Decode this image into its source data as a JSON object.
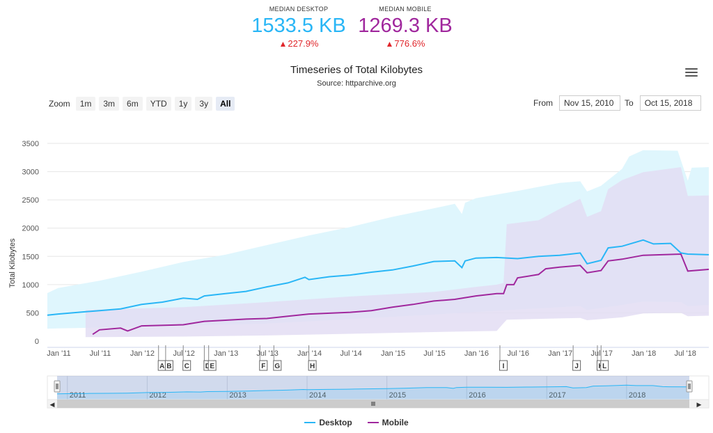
{
  "kpis": {
    "desktop": {
      "label": "MEDIAN DESKTOP",
      "value": "1533.5 KB",
      "change": "227.9%",
      "color": "#29b6f6"
    },
    "mobile": {
      "label": "MEDIAN MOBILE",
      "value": "1269.3 KB",
      "change": "776.6%",
      "color": "#a0279d"
    }
  },
  "menu_icon": "hamburger-menu-icon",
  "zoom": {
    "label": "Zoom",
    "buttons": [
      "1m",
      "3m",
      "6m",
      "YTD",
      "1y",
      "3y",
      "All"
    ],
    "active": "All"
  },
  "range": {
    "from_label": "From",
    "from_value": "Nov 15, 2010",
    "to_label": "To",
    "to_value": "Oct 15, 2018"
  },
  "chart_data": {
    "type": "line",
    "title": "Timeseries of Total Kilobytes",
    "subtitle": "Source: httparchive.org",
    "ylabel": "Total Kilobytes",
    "xlabel": "",
    "ylim": [
      0,
      3500
    ],
    "yticks": [
      0,
      500,
      1000,
      1500,
      2000,
      2500,
      3000,
      3500
    ],
    "xlim": [
      "2010-11-15",
      "2018-10-15"
    ],
    "xticks": [
      {
        "date": "2011-01-01",
        "label": "Jan '11"
      },
      {
        "date": "2011-07-01",
        "label": "Jul '11"
      },
      {
        "date": "2012-01-01",
        "label": "Jan '12"
      },
      {
        "date": "2012-07-01",
        "label": "Jul '12"
      },
      {
        "date": "2013-01-01",
        "label": "Jan '13"
      },
      {
        "date": "2013-07-01",
        "label": "Jul '13"
      },
      {
        "date": "2014-01-01",
        "label": "Jan '14"
      },
      {
        "date": "2014-07-01",
        "label": "Jul '14"
      },
      {
        "date": "2015-01-01",
        "label": "Jan '15"
      },
      {
        "date": "2015-07-01",
        "label": "Jul '15"
      },
      {
        "date": "2016-01-01",
        "label": "Jan '16"
      },
      {
        "date": "2016-07-01",
        "label": "Jul '16"
      },
      {
        "date": "2017-01-01",
        "label": "Jan '17"
      },
      {
        "date": "2017-07-01",
        "label": "Jul '17"
      },
      {
        "date": "2018-01-01",
        "label": "Jan '18"
      },
      {
        "date": "2018-07-01",
        "label": "Jul '18"
      }
    ],
    "grid": true,
    "legend_position": "bottom-center",
    "series": [
      {
        "name": "Desktop",
        "color": "#29b6f6",
        "band_color": "#dff6fd",
        "median": [
          [
            "2010-11-15",
            460
          ],
          [
            "2011-01-01",
            480
          ],
          [
            "2011-04-01",
            510
          ],
          [
            "2011-07-01",
            540
          ],
          [
            "2011-10-01",
            570
          ],
          [
            "2012-01-01",
            650
          ],
          [
            "2012-04-01",
            690
          ],
          [
            "2012-07-01",
            760
          ],
          [
            "2012-09-01",
            740
          ],
          [
            "2012-10-01",
            800
          ],
          [
            "2013-01-01",
            840
          ],
          [
            "2013-04-01",
            880
          ],
          [
            "2013-07-01",
            960
          ],
          [
            "2013-10-01",
            1030
          ],
          [
            "2013-12-15",
            1130
          ],
          [
            "2014-01-01",
            1090
          ],
          [
            "2014-04-01",
            1140
          ],
          [
            "2014-07-01",
            1170
          ],
          [
            "2014-10-01",
            1220
          ],
          [
            "2015-01-01",
            1260
          ],
          [
            "2015-04-01",
            1330
          ],
          [
            "2015-07-01",
            1410
          ],
          [
            "2015-10-01",
            1420
          ],
          [
            "2015-11-01",
            1300
          ],
          [
            "2015-11-15",
            1420
          ],
          [
            "2016-01-01",
            1470
          ],
          [
            "2016-04-01",
            1480
          ],
          [
            "2016-07-01",
            1460
          ],
          [
            "2016-10-01",
            1500
          ],
          [
            "2017-01-01",
            1520
          ],
          [
            "2017-04-01",
            1560
          ],
          [
            "2017-05-01",
            1370
          ],
          [
            "2017-07-01",
            1430
          ],
          [
            "2017-08-01",
            1650
          ],
          [
            "2017-10-01",
            1680
          ],
          [
            "2018-01-01",
            1790
          ],
          [
            "2018-02-15",
            1720
          ],
          [
            "2018-05-01",
            1730
          ],
          [
            "2018-06-15",
            1560
          ],
          [
            "2018-07-15",
            1540
          ],
          [
            "2018-10-15",
            1530
          ]
        ],
        "p90": [
          [
            "2010-11-15",
            850
          ],
          [
            "2011-01-01",
            940
          ],
          [
            "2011-07-01",
            1070
          ],
          [
            "2012-01-01",
            1230
          ],
          [
            "2012-07-01",
            1400
          ],
          [
            "2013-01-01",
            1530
          ],
          [
            "2013-07-01",
            1700
          ],
          [
            "2014-01-01",
            1870
          ],
          [
            "2014-07-01",
            2020
          ],
          [
            "2015-01-01",
            2200
          ],
          [
            "2015-07-01",
            2350
          ],
          [
            "2015-10-01",
            2430
          ],
          [
            "2015-11-01",
            2250
          ],
          [
            "2015-11-15",
            2450
          ],
          [
            "2016-01-01",
            2530
          ],
          [
            "2016-07-01",
            2660
          ],
          [
            "2017-01-01",
            2800
          ],
          [
            "2017-04-01",
            2830
          ],
          [
            "2017-05-01",
            2650
          ],
          [
            "2017-07-01",
            2750
          ],
          [
            "2017-10-01",
            3050
          ],
          [
            "2017-11-01",
            3270
          ],
          [
            "2018-01-01",
            3380
          ],
          [
            "2018-06-01",
            3370
          ],
          [
            "2018-07-15",
            2840
          ],
          [
            "2018-08-01",
            3070
          ],
          [
            "2018-10-15",
            3080
          ]
        ],
        "p10": [
          [
            "2010-11-15",
            220
          ],
          [
            "2011-07-01",
            240
          ],
          [
            "2012-07-01",
            270
          ],
          [
            "2013-07-01",
            310
          ],
          [
            "2014-07-01",
            390
          ],
          [
            "2015-07-01",
            470
          ],
          [
            "2016-07-01",
            560
          ],
          [
            "2017-04-01",
            620
          ],
          [
            "2017-05-01",
            550
          ],
          [
            "2017-10-01",
            640
          ],
          [
            "2018-01-01",
            700
          ],
          [
            "2018-06-15",
            690
          ],
          [
            "2018-07-15",
            620
          ],
          [
            "2018-10-15",
            640
          ]
        ]
      },
      {
        "name": "Mobile",
        "color": "#a0279d",
        "band_color": "#e3ddf3",
        "median": [
          [
            "2011-06-01",
            120
          ],
          [
            "2011-07-01",
            200
          ],
          [
            "2011-10-01",
            230
          ],
          [
            "2011-11-01",
            180
          ],
          [
            "2012-01-01",
            270
          ],
          [
            "2012-07-01",
            290
          ],
          [
            "2012-10-01",
            350
          ],
          [
            "2013-01-01",
            370
          ],
          [
            "2013-04-01",
            390
          ],
          [
            "2013-07-01",
            400
          ],
          [
            "2013-10-01",
            440
          ],
          [
            "2014-01-01",
            480
          ],
          [
            "2014-07-01",
            510
          ],
          [
            "2014-10-01",
            540
          ],
          [
            "2015-01-01",
            600
          ],
          [
            "2015-04-01",
            650
          ],
          [
            "2015-07-01",
            710
          ],
          [
            "2015-10-01",
            740
          ],
          [
            "2016-01-01",
            800
          ],
          [
            "2016-04-01",
            840
          ],
          [
            "2016-05-01",
            840
          ],
          [
            "2016-05-15",
            1000
          ],
          [
            "2016-06-15",
            1000
          ],
          [
            "2016-07-01",
            1120
          ],
          [
            "2016-10-01",
            1180
          ],
          [
            "2016-11-01",
            1280
          ],
          [
            "2017-01-01",
            1310
          ],
          [
            "2017-04-01",
            1340
          ],
          [
            "2017-05-01",
            1210
          ],
          [
            "2017-07-01",
            1250
          ],
          [
            "2017-08-01",
            1420
          ],
          [
            "2017-10-01",
            1450
          ],
          [
            "2018-01-01",
            1520
          ],
          [
            "2018-06-15",
            1540
          ],
          [
            "2018-07-15",
            1240
          ],
          [
            "2018-10-15",
            1270
          ]
        ],
        "p90": [
          [
            "2011-05-01",
            550
          ],
          [
            "2011-07-01",
            560
          ],
          [
            "2012-07-01",
            600
          ],
          [
            "2013-07-01",
            690
          ],
          [
            "2014-07-01",
            790
          ],
          [
            "2015-07-01",
            870
          ],
          [
            "2016-01-01",
            960
          ],
          [
            "2016-04-01",
            1000
          ],
          [
            "2016-05-01",
            1030
          ],
          [
            "2016-05-15",
            2070
          ],
          [
            "2016-10-01",
            2140
          ],
          [
            "2017-01-01",
            2340
          ],
          [
            "2017-04-01",
            2520
          ],
          [
            "2017-05-01",
            2200
          ],
          [
            "2017-07-01",
            2300
          ],
          [
            "2017-08-01",
            2690
          ],
          [
            "2017-10-01",
            2850
          ],
          [
            "2018-01-01",
            2990
          ],
          [
            "2018-06-15",
            3080
          ],
          [
            "2018-07-15",
            2570
          ],
          [
            "2018-10-15",
            2580
          ]
        ],
        "p10": [
          [
            "2011-05-01",
            70
          ],
          [
            "2012-07-01",
            80
          ],
          [
            "2013-07-01",
            100
          ],
          [
            "2014-07-01",
            130
          ],
          [
            "2015-07-01",
            160
          ],
          [
            "2016-04-01",
            180
          ],
          [
            "2016-05-15",
            380
          ],
          [
            "2017-04-01",
            410
          ],
          [
            "2017-05-01",
            370
          ],
          [
            "2017-10-01",
            420
          ],
          [
            "2018-01-01",
            490
          ],
          [
            "2018-06-15",
            500
          ],
          [
            "2018-07-15",
            440
          ],
          [
            "2018-10-15",
            450
          ]
        ]
      }
    ],
    "flags": [
      {
        "letter": "A",
        "date": "2012-03-15"
      },
      {
        "letter": "B",
        "date": "2012-04-15"
      },
      {
        "letter": "C",
        "date": "2012-07-01"
      },
      {
        "letter": "D",
        "date": "2012-10-01"
      },
      {
        "letter": "E",
        "date": "2012-10-20"
      },
      {
        "letter": "F",
        "date": "2013-06-01"
      },
      {
        "letter": "G",
        "date": "2013-08-01"
      },
      {
        "letter": "H",
        "date": "2014-01-01"
      },
      {
        "letter": "I",
        "date": "2016-04-15"
      },
      {
        "letter": "J",
        "date": "2017-03-01"
      },
      {
        "letter": "K",
        "date": "2017-06-15"
      },
      {
        "letter": "L",
        "date": "2017-07-01"
      }
    ],
    "navigator": {
      "labels": [
        "2011",
        "2012",
        "2013",
        "2014",
        "2015",
        "2016",
        "2017",
        "2018"
      ],
      "scrollbar_icon": "scrollbar-grip-icon"
    }
  },
  "legend": [
    {
      "name": "Desktop",
      "color": "#29b6f6"
    },
    {
      "name": "Mobile",
      "color": "#a0279d"
    }
  ]
}
